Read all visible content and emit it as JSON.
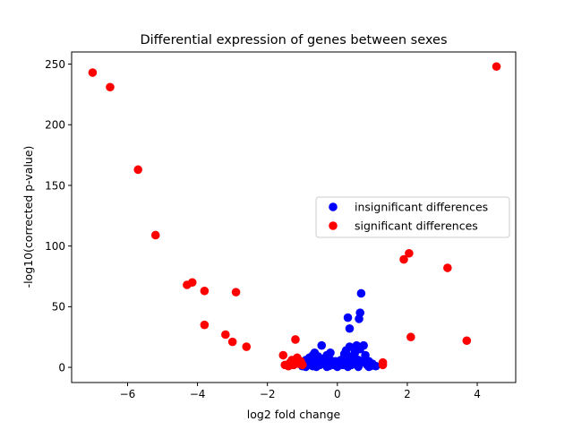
{
  "chart_data": {
    "type": "scatter",
    "title": "Differential expression of genes between sexes",
    "xlabel": "log2 fold change",
    "ylabel": "-log10(corrected p-value)",
    "xlim": [
      -7.6,
      5.1
    ],
    "ylim": [
      -12.5,
      260
    ],
    "xticks": [
      -6,
      -4,
      -2,
      0,
      2,
      4
    ],
    "yticks": [
      0,
      50,
      100,
      150,
      200,
      250
    ],
    "xtick_labels": [
      "−6",
      "−4",
      "−2",
      "0",
      "2",
      "4"
    ],
    "ytick_labels": [
      "0",
      "50",
      "100",
      "150",
      "200",
      "250"
    ],
    "grid": false,
    "legend_position": "center-right",
    "series": [
      {
        "name": "insignificant differences",
        "color": "#0000ff",
        "points": [
          [
            -1.0,
            1.0
          ],
          [
            -0.95,
            3.0
          ],
          [
            -0.9,
            6.0
          ],
          [
            -0.85,
            2.0
          ],
          [
            -0.8,
            8.0
          ],
          [
            -0.75,
            4.0
          ],
          [
            -0.7,
            1.0
          ],
          [
            -0.65,
            12.0
          ],
          [
            -0.6,
            5.0
          ],
          [
            -0.55,
            9.0
          ],
          [
            -0.5,
            2.0
          ],
          [
            -0.45,
            18.0
          ],
          [
            -0.4,
            7.0
          ],
          [
            -0.35,
            3.0
          ],
          [
            -0.3,
            10.0
          ],
          [
            -0.25,
            1.0
          ],
          [
            -0.2,
            6.0
          ],
          [
            -0.15,
            4.0
          ],
          [
            -0.1,
            2.0
          ],
          [
            -0.05,
            5.0
          ],
          [
            0.0,
            1.0
          ],
          [
            0.05,
            3.0
          ],
          [
            0.1,
            6.0
          ],
          [
            0.15,
            2.0
          ],
          [
            0.2,
            8.0
          ],
          [
            0.25,
            14.0
          ],
          [
            0.3,
            5.0
          ],
          [
            0.35,
            17.0
          ],
          [
            0.4,
            9.0
          ],
          [
            0.45,
            3.0
          ],
          [
            0.5,
            12.0
          ],
          [
            0.55,
            18.0
          ],
          [
            0.6,
            6.0
          ],
          [
            0.65,
            15.0
          ],
          [
            0.7,
            4.0
          ],
          [
            0.75,
            18.0
          ],
          [
            0.8,
            7.0
          ],
          [
            0.85,
            2.0
          ],
          [
            0.9,
            5.0
          ],
          [
            0.95,
            1.0
          ],
          [
            1.0,
            3.0
          ],
          [
            1.1,
            1.0
          ],
          [
            -0.9,
            0.5
          ],
          [
            -0.6,
            0.5
          ],
          [
            -0.3,
            0.5
          ],
          [
            0.0,
            0.5
          ],
          [
            0.3,
            0.5
          ],
          [
            0.6,
            0.5
          ],
          [
            0.9,
            0.5
          ],
          [
            -0.7,
            10.0
          ],
          [
            -0.2,
            12.0
          ],
          [
            0.2,
            11.0
          ],
          [
            0.5,
            8.0
          ],
          [
            0.8,
            10.0
          ],
          [
            0.4,
            2.0
          ],
          [
            -0.5,
            4.0
          ],
          [
            0.3,
            41.0
          ],
          [
            0.35,
            32.0
          ],
          [
            0.62,
            40.0
          ],
          [
            0.65,
            45.0
          ],
          [
            0.68,
            61.0
          ]
        ]
      },
      {
        "name": "significant differences",
        "color": "#ff0000",
        "points": [
          [
            -7.0,
            243.0
          ],
          [
            -6.5,
            231.0
          ],
          [
            -5.7,
            163.0
          ],
          [
            -5.2,
            109.0
          ],
          [
            -4.3,
            68.0
          ],
          [
            -4.15,
            70.0
          ],
          [
            -3.8,
            63.0
          ],
          [
            -3.8,
            35.0
          ],
          [
            -3.2,
            27.0
          ],
          [
            -3.0,
            21.0
          ],
          [
            -2.9,
            62.0
          ],
          [
            -2.6,
            17.0
          ],
          [
            -1.55,
            10.0
          ],
          [
            -1.5,
            2.0
          ],
          [
            -1.4,
            1.0
          ],
          [
            -1.35,
            4.0
          ],
          [
            -1.3,
            6.0
          ],
          [
            -1.25,
            2.0
          ],
          [
            -1.2,
            23.0
          ],
          [
            -1.15,
            8.0
          ],
          [
            -1.1,
            3.0
          ],
          [
            -1.05,
            5.0
          ],
          [
            -1.0,
            2.0
          ],
          [
            1.3,
            2.0
          ],
          [
            1.3,
            4.0
          ],
          [
            1.9,
            89.0
          ],
          [
            2.05,
            94.0
          ],
          [
            2.1,
            25.0
          ],
          [
            3.15,
            82.0
          ],
          [
            3.7,
            22.0
          ],
          [
            4.55,
            248.0
          ]
        ]
      }
    ]
  }
}
